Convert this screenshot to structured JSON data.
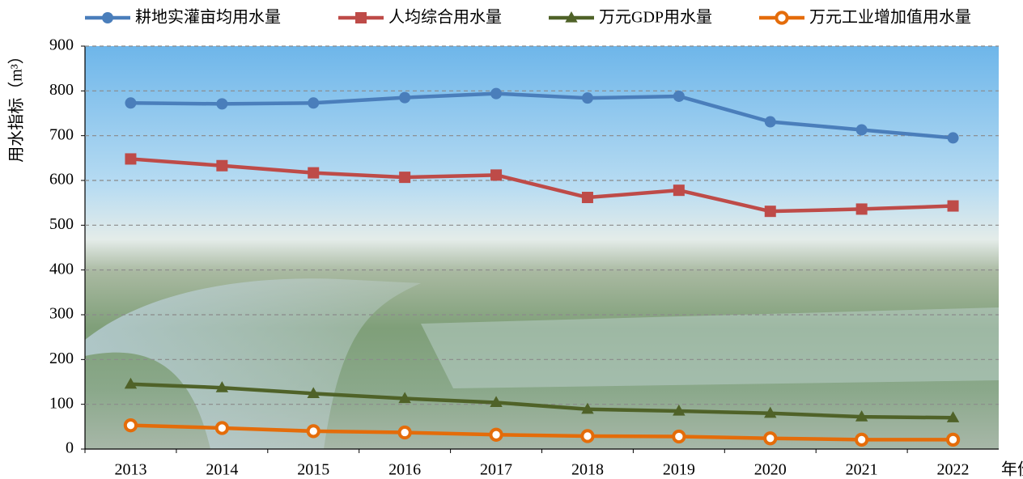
{
  "chart_data": {
    "type": "line",
    "ylabel": "用水指标（m³）",
    "xlabel": "年份",
    "categories": [
      "2013",
      "2014",
      "2015",
      "2016",
      "2017",
      "2018",
      "2019",
      "2020",
      "2021",
      "2022"
    ],
    "series": [
      {
        "name": "耕地实灌亩均用水量",
        "color": "#4a7ebb",
        "marker": "circle",
        "values": [
          773,
          771,
          773,
          785,
          794,
          784,
          788,
          731,
          713,
          695
        ]
      },
      {
        "name": "人均综合用水量",
        "color": "#be4b48",
        "marker": "square",
        "values": [
          648,
          633,
          617,
          607,
          612,
          562,
          578,
          531,
          536,
          543
        ]
      },
      {
        "name": "万元GDP用水量",
        "color": "#4f6228",
        "marker": "triangle",
        "values": [
          145,
          137,
          124,
          113,
          104,
          89,
          85,
          80,
          72,
          70
        ]
      },
      {
        "name": "万元工业增加值用水量",
        "color": "#e46c0a",
        "marker": "open-circle",
        "values": [
          53,
          47,
          40,
          37,
          32,
          29,
          28,
          24,
          21,
          21
        ]
      }
    ],
    "ylim": [
      0,
      900
    ],
    "yticks": [
      0,
      100,
      200,
      300,
      400,
      500,
      600,
      700,
      800,
      900
    ],
    "grid": true
  }
}
